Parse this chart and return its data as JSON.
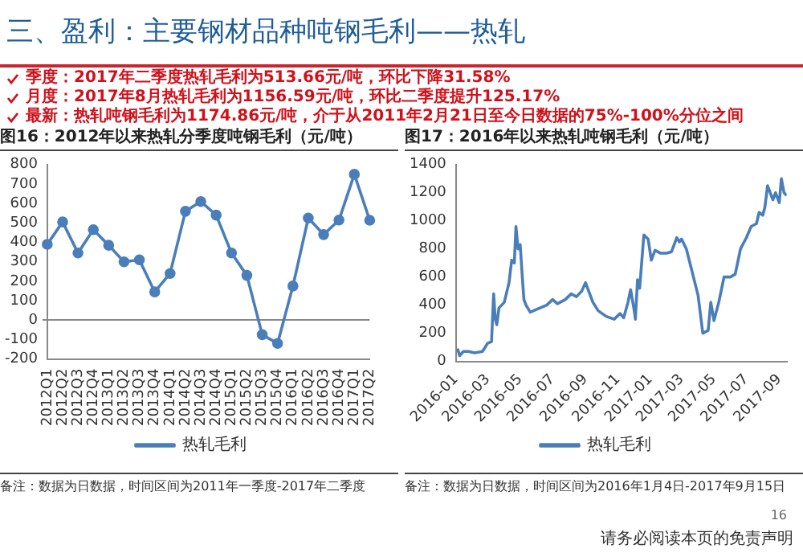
{
  "chart_data": [
    {
      "type": "line",
      "title": "图16：2012年以来热轧分季度吨钢毛利（元/吨）",
      "categories": [
        "2012Q1",
        "2012Q2",
        "2012Q3",
        "2012Q4",
        "2013Q1",
        "2013Q2",
        "2013Q3",
        "2013Q4",
        "2014Q1",
        "2014Q2",
        "2014Q3",
        "2014Q4",
        "2015Q1",
        "2015Q2",
        "2015Q3",
        "2015Q4",
        "2016Q1",
        "2016Q2",
        "2016Q3",
        "2016Q4",
        "2017Q1",
        "2017Q2"
      ],
      "series": [
        {
          "name": "热轧毛利",
          "color": "#4a7ebb",
          "values": [
            390,
            505,
            345,
            465,
            385,
            300,
            310,
            145,
            240,
            560,
            610,
            540,
            345,
            230,
            -75,
            -120,
            175,
            525,
            440,
            515,
            750,
            514
          ]
        }
      ],
      "ylim": [
        -200,
        800
      ],
      "yticks": [
        -200,
        -100,
        0,
        100,
        200,
        300,
        400,
        500,
        600,
        700,
        800
      ],
      "marker": "circle",
      "legend": "bottom",
      "annotations": [
        "三、盈利：主要钢材品种吨钢毛利——热轧",
        "季度：2017年二季度热轧毛利为513.66元/吨，环比下降31.58%",
        "月度：2017年8月热轧毛利为1156.59元/吨，环比二季度提升125.17%",
        "最新：热轧吨钢毛利为1174.86元/吨，介于从2011年2月21日至今日数据的75%-100%分位之间",
        "备注：数据为日数据，时间区间为2011年一季度-2017年二季度"
      ]
    },
    {
      "type": "line",
      "title": "图17：2016年以来热轧吨钢毛利（元/吨）",
      "xlim": [
        "2016-01-01",
        "2017-09-15"
      ],
      "xticks": [
        "2016-01",
        "2016-03",
        "2016-05",
        "2016-07",
        "2016-09",
        "2016-11",
        "2017-01",
        "2017-03",
        "2017-05",
        "2017-07",
        "2017-09"
      ],
      "x": [
        "2016-01-04",
        "2016-01-08",
        "2016-01-15",
        "2016-01-25",
        "2016-02-05",
        "2016-02-20",
        "2016-03-01",
        "2016-03-08",
        "2016-03-12",
        "2016-03-15",
        "2016-03-18",
        "2016-03-22",
        "2016-04-01",
        "2016-04-10",
        "2016-04-15",
        "2016-04-20",
        "2016-04-23",
        "2016-04-27",
        "2016-05-01",
        "2016-05-05",
        "2016-05-08",
        "2016-05-12",
        "2016-05-20",
        "2016-06-01",
        "2016-06-20",
        "2016-07-01",
        "2016-07-10",
        "2016-07-25",
        "2016-08-05",
        "2016-08-15",
        "2016-08-25",
        "2016-09-01",
        "2016-09-05",
        "2016-09-15",
        "2016-09-25",
        "2016-10-10",
        "2016-10-25",
        "2016-11-05",
        "2016-11-12",
        "2016-11-20",
        "2016-11-25",
        "2016-12-01",
        "2016-12-04",
        "2016-12-08",
        "2016-12-12",
        "2016-12-20",
        "2016-12-28",
        "2017-01-03",
        "2017-01-10",
        "2017-01-20",
        "2017-02-01",
        "2017-02-10",
        "2017-02-20",
        "2017-02-25",
        "2017-03-01",
        "2017-03-10",
        "2017-03-20",
        "2017-04-01",
        "2017-04-10",
        "2017-04-20",
        "2017-04-25",
        "2017-05-01",
        "2017-05-10",
        "2017-05-20",
        "2017-06-01",
        "2017-06-10",
        "2017-06-20",
        "2017-07-01",
        "2017-07-10",
        "2017-07-20",
        "2017-07-25",
        "2017-08-01",
        "2017-08-05",
        "2017-08-10",
        "2017-08-15",
        "2017-08-20",
        "2017-08-25",
        "2017-09-01",
        "2017-09-05",
        "2017-09-10",
        "2017-09-15"
      ],
      "series": [
        {
          "name": "热轧毛利",
          "color": "#4a7ebb",
          "values": [
            90,
            40,
            70,
            70,
            60,
            70,
            130,
            140,
            480,
            300,
            260,
            380,
            420,
            560,
            720,
            700,
            960,
            800,
            830,
            600,
            440,
            400,
            350,
            370,
            400,
            440,
            410,
            440,
            480,
            460,
            500,
            560,
            520,
            420,
            360,
            320,
            300,
            340,
            310,
            420,
            510,
            380,
            300,
            580,
            520,
            900,
            870,
            720,
            790,
            770,
            770,
            780,
            880,
            850,
            870,
            800,
            650,
            470,
            200,
            220,
            420,
            290,
            420,
            600,
            600,
            620,
            800,
            880,
            960,
            980,
            1060,
            1040,
            1100,
            1250,
            1200,
            1150,
            1200,
            1130,
            1300,
            1200,
            1180
          ]
        }
      ],
      "ylim": [
        0,
        1400
      ],
      "yticks": [
        0,
        200,
        400,
        600,
        800,
        1000,
        1200,
        1400
      ],
      "marker": "none",
      "legend": "bottom",
      "annotations": [
        "备注：数据为日数据，时间区间为2016年1月4日-2017年9月15日",
        "16",
        "请务必阅读本页的免责声明"
      ]
    }
  ]
}
